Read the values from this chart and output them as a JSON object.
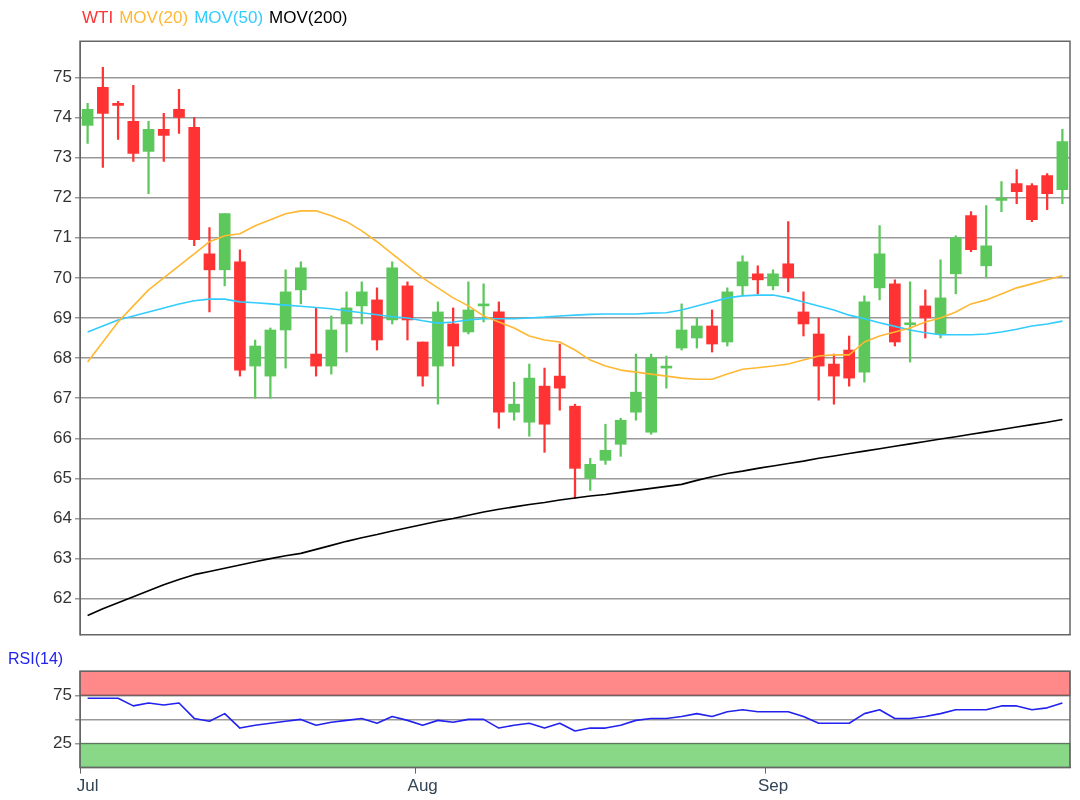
{
  "chart_data": [
    {
      "type": "candlestick",
      "legend": "top left",
      "grid": "y",
      "tick_labels": "y",
      "ylim": [
        61.1,
        75.9
      ],
      "yticks": [
        62,
        63,
        64,
        65,
        66,
        67,
        68,
        69,
        70,
        71,
        72,
        73,
        74,
        75
      ],
      "categories": [
        null,
        null,
        null,
        null,
        null,
        null,
        null,
        null,
        null,
        null,
        null,
        null,
        null,
        null,
        null,
        null,
        null,
        null,
        null,
        null,
        null,
        null,
        null,
        null,
        null,
        null,
        null,
        null,
        null,
        null,
        null,
        null,
        null,
        null,
        null,
        null,
        null,
        null,
        null,
        null,
        null,
        null,
        null,
        null,
        null,
        null,
        null,
        null,
        null,
        null,
        null,
        null,
        null,
        null,
        null,
        null,
        null,
        null,
        null,
        null,
        null,
        null,
        null,
        null,
        null
      ],
      "series": [
        {
          "name": "WTI",
          "color": "#ff3333",
          "colors": [
            "#5cc85c",
            "#ff3333",
            "#ff3333",
            "#ff3333",
            "#5cc85c",
            "#ff3333",
            "#ff3333",
            "#ff3333",
            "#ff3333",
            "#5cc85c",
            "#ff3333",
            "#5cc85c",
            "#5cc85c",
            "#5cc85c",
            "#5cc85c",
            "#ff3333",
            "#5cc85c",
            "#5cc85c",
            "#5cc85c",
            "#ff3333",
            "#5cc85c",
            "#ff3333",
            "#ff3333",
            "#5cc85c",
            "#ff3333",
            "#5cc85c",
            "#5cc85c",
            "#ff3333",
            "#5cc85c",
            "#5cc85c",
            "#ff3333",
            "#ff3333",
            "#ff3333",
            "#5cc85c",
            "#5cc85c",
            "#5cc85c",
            "#5cc85c",
            "#5cc85c",
            "#5cc85c",
            "#5cc85c",
            "#5cc85c",
            "#ff3333",
            "#5cc85c",
            "#5cc85c",
            "#ff3333",
            "#5cc85c",
            "#ff3333",
            "#ff3333",
            "#ff3333",
            "#ff3333",
            "#ff3333",
            "#5cc85c",
            "#5cc85c",
            "#ff3333",
            "#5cc85c",
            "#ff3333",
            "#5cc85c",
            "#5cc85c",
            "#ff3333",
            "#5cc85c",
            "#5cc85c",
            "#ff3333",
            "#ff3333",
            "#ff3333",
            "#5cc85c"
          ],
          "ohlc": [
            [
              73.8,
              74.35,
              73.35,
              74.2
            ],
            [
              74.75,
              75.25,
              72.75,
              74.1
            ],
            [
              74.32,
              74.4,
              73.45,
              74.3
            ],
            [
              73.9,
              74.8,
              72.9,
              73.1
            ],
            [
              73.15,
              73.9,
              72.1,
              73.7
            ],
            [
              73.7,
              74.1,
              72.9,
              73.55
            ],
            [
              74.2,
              74.7,
              73.6,
              74.0
            ],
            [
              73.75,
              74.0,
              70.8,
              70.95
            ],
            [
              70.6,
              71.25,
              69.15,
              70.2
            ],
            [
              70.2,
              71.6,
              69.8,
              71.6
            ],
            [
              70.4,
              70.7,
              67.55,
              67.7
            ],
            [
              67.8,
              68.45,
              67.0,
              68.3
            ],
            [
              67.55,
              68.75,
              67.0,
              68.7
            ],
            [
              68.7,
              70.2,
              67.75,
              69.65
            ],
            [
              69.7,
              70.4,
              69.35,
              70.25
            ],
            [
              68.1,
              69.25,
              67.55,
              67.8
            ],
            [
              67.8,
              69.05,
              67.6,
              68.7
            ],
            [
              68.85,
              69.65,
              68.15,
              69.25
            ],
            [
              69.3,
              69.9,
              68.85,
              69.65
            ],
            [
              69.45,
              69.75,
              68.2,
              68.45
            ],
            [
              68.95,
              70.4,
              68.85,
              70.25
            ],
            [
              69.8,
              69.9,
              68.45,
              68.95
            ],
            [
              68.4,
              68.4,
              67.3,
              67.55
            ],
            [
              67.8,
              69.4,
              66.85,
              69.15
            ],
            [
              68.85,
              69.25,
              67.8,
              68.3
            ],
            [
              68.65,
              69.9,
              68.6,
              69.2
            ],
            [
              69.3,
              69.85,
              68.9,
              69.35
            ],
            [
              69.15,
              69.4,
              66.25,
              66.65
            ],
            [
              66.65,
              67.4,
              66.45,
              66.85
            ],
            [
              66.4,
              67.85,
              66.05,
              67.5
            ],
            [
              67.3,
              67.75,
              65.65,
              66.35
            ],
            [
              67.55,
              68.35,
              66.7,
              67.25
            ],
            [
              66.8,
              66.85,
              64.5,
              65.25
            ],
            [
              65.0,
              65.5,
              64.7,
              65.35
            ],
            [
              65.45,
              66.35,
              65.35,
              65.7
            ],
            [
              65.85,
              66.5,
              65.55,
              66.45
            ],
            [
              66.65,
              68.1,
              66.45,
              67.15
            ],
            [
              66.15,
              68.1,
              66.1,
              68.0
            ],
            [
              67.75,
              68.05,
              67.25,
              67.8
            ],
            [
              68.25,
              69.35,
              68.2,
              68.7
            ],
            [
              68.5,
              69.0,
              68.25,
              68.8
            ],
            [
              68.8,
              69.2,
              68.15,
              68.35
            ],
            [
              68.4,
              69.75,
              68.3,
              69.65
            ],
            [
              69.8,
              70.55,
              69.55,
              70.4
            ],
            [
              70.1,
              70.3,
              69.6,
              69.95
            ],
            [
              69.8,
              70.2,
              69.7,
              70.1
            ],
            [
              70.35,
              71.4,
              69.65,
              70.0
            ],
            [
              69.15,
              69.65,
              68.55,
              68.85
            ],
            [
              68.6,
              69.0,
              66.95,
              67.8
            ],
            [
              67.85,
              68.1,
              66.85,
              67.55
            ],
            [
              68.2,
              68.55,
              67.3,
              67.5
            ],
            [
              67.65,
              69.55,
              67.4,
              69.4
            ],
            [
              69.75,
              71.3,
              69.45,
              70.6
            ],
            [
              69.85,
              69.95,
              68.3,
              68.4
            ],
            [
              68.83,
              69.9,
              67.9,
              68.85
            ],
            [
              69.3,
              69.7,
              68.5,
              69.0
            ],
            [
              68.6,
              70.45,
              68.5,
              69.5
            ],
            [
              70.1,
              71.05,
              69.6,
              71.0
            ],
            [
              71.55,
              71.65,
              70.65,
              70.7
            ],
            [
              70.3,
              71.8,
              70.0,
              70.8
            ],
            [
              71.93,
              72.4,
              71.65,
              71.95
            ],
            [
              72.35,
              72.7,
              71.85,
              72.15
            ],
            [
              72.3,
              72.35,
              71.4,
              71.45
            ],
            [
              72.55,
              72.6,
              71.7,
              72.1
            ],
            [
              72.2,
              73.7,
              71.85,
              73.4
            ]
          ]
        },
        {
          "type": "line",
          "name": "MOV(20)",
          "color": "#ffb833",
          "values": [
            67.9,
            68.4,
            68.9,
            69.3,
            69.7,
            70.0,
            70.3,
            70.6,
            70.9,
            71.05,
            71.1,
            71.3,
            71.45,
            71.6,
            71.67,
            71.67,
            71.55,
            71.4,
            71.17,
            70.9,
            70.6,
            70.3,
            70.0,
            69.75,
            69.5,
            69.3,
            69.05,
            68.9,
            68.75,
            68.55,
            68.45,
            68.4,
            68.2,
            67.95,
            67.8,
            67.7,
            67.65,
            67.6,
            67.55,
            67.5,
            67.47,
            67.47,
            67.6,
            67.72,
            67.76,
            67.8,
            67.85,
            67.95,
            68.05,
            68.08,
            68.08,
            68.4,
            68.55,
            68.65,
            68.75,
            68.9,
            69.0,
            69.15,
            69.35,
            69.45,
            69.6,
            69.75,
            69.85,
            69.95,
            70.05
          ]
        },
        {
          "type": "line",
          "name": "MOV(50)",
          "color": "#33ccff",
          "values": [
            68.65,
            68.8,
            68.95,
            69.05,
            69.15,
            69.25,
            69.35,
            69.43,
            69.47,
            69.47,
            69.4,
            69.38,
            69.35,
            69.32,
            69.29,
            69.26,
            69.23,
            69.18,
            69.13,
            69.08,
            69.03,
            69.0,
            68.93,
            68.87,
            68.9,
            68.95,
            68.98,
            68.98,
            68.98,
            69.0,
            69.02,
            69.05,
            69.07,
            69.09,
            69.1,
            69.1,
            69.1,
            69.12,
            69.13,
            69.2,
            69.3,
            69.4,
            69.5,
            69.55,
            69.57,
            69.57,
            69.5,
            69.4,
            69.3,
            69.2,
            69.07,
            68.98,
            68.88,
            68.79,
            68.7,
            68.63,
            68.58,
            68.58,
            68.58,
            68.6,
            68.65,
            68.72,
            68.8,
            68.85,
            68.92
          ]
        },
        {
          "type": "line",
          "name": "MOV(200)",
          "color": "#000000",
          "values": [
            61.58,
            61.75,
            61.9,
            62.05,
            62.2,
            62.35,
            62.48,
            62.6,
            62.68,
            62.76,
            62.84,
            62.92,
            63.0,
            63.07,
            63.13,
            63.23,
            63.33,
            63.43,
            63.52,
            63.6,
            63.69,
            63.77,
            63.85,
            63.93,
            64.0,
            64.08,
            64.16,
            64.23,
            64.29,
            64.35,
            64.4,
            64.46,
            64.51,
            64.56,
            64.6,
            64.65,
            64.7,
            64.75,
            64.8,
            64.85,
            64.95,
            65.04,
            65.12,
            65.18,
            65.25,
            65.31,
            65.37,
            65.43,
            65.5,
            65.56,
            65.62,
            65.68,
            65.74,
            65.8,
            65.86,
            65.92,
            65.98,
            66.04,
            66.1,
            66.16,
            66.22,
            66.28,
            66.34,
            66.4,
            66.47
          ]
        }
      ]
    },
    {
      "type": "line",
      "title": "RSI(14)",
      "color": "#2222ee",
      "grid": "y",
      "ylim": [
        0,
        100
      ],
      "yticks": [
        25,
        {
          "value": 50,
          "label": null
        },
        75
      ],
      "categories": [
        "Jul",
        null,
        null,
        null,
        null,
        null,
        null,
        null,
        null,
        null,
        null,
        null,
        null,
        null,
        null,
        null,
        null,
        null,
        null,
        null,
        null,
        null,
        "Aug",
        null,
        null,
        null,
        null,
        null,
        null,
        null,
        null,
        null,
        null,
        null,
        null,
        null,
        null,
        null,
        null,
        null,
        null,
        null,
        null,
        null,
        null,
        "Sep",
        null,
        null,
        null,
        null,
        null,
        null,
        null,
        null,
        null,
        null,
        null,
        null,
        null,
        null,
        null,
        null,
        null,
        null,
        null
      ],
      "values": [
        72,
        72,
        72,
        64,
        67,
        65,
        67,
        51,
        48,
        56,
        41,
        44,
        46,
        48,
        50,
        44,
        47,
        49,
        51,
        46,
        53,
        49,
        44,
        49,
        47,
        50,
        50,
        41,
        44,
        46,
        41,
        46,
        38,
        41,
        41,
        44,
        49,
        51,
        51,
        53,
        56,
        53,
        58,
        60,
        58,
        58,
        58,
        53,
        46,
        46,
        46,
        56,
        60,
        51,
        51,
        53,
        56,
        60,
        60,
        60,
        64,
        64,
        60,
        62,
        67
      ],
      "bands": [
        {
          "axis": "y",
          "from": 75,
          "to": 100,
          "color": "#ff8888"
        },
        {
          "axis": "y",
          "from": 0,
          "to": 25,
          "color": "#88d888"
        }
      ]
    }
  ]
}
